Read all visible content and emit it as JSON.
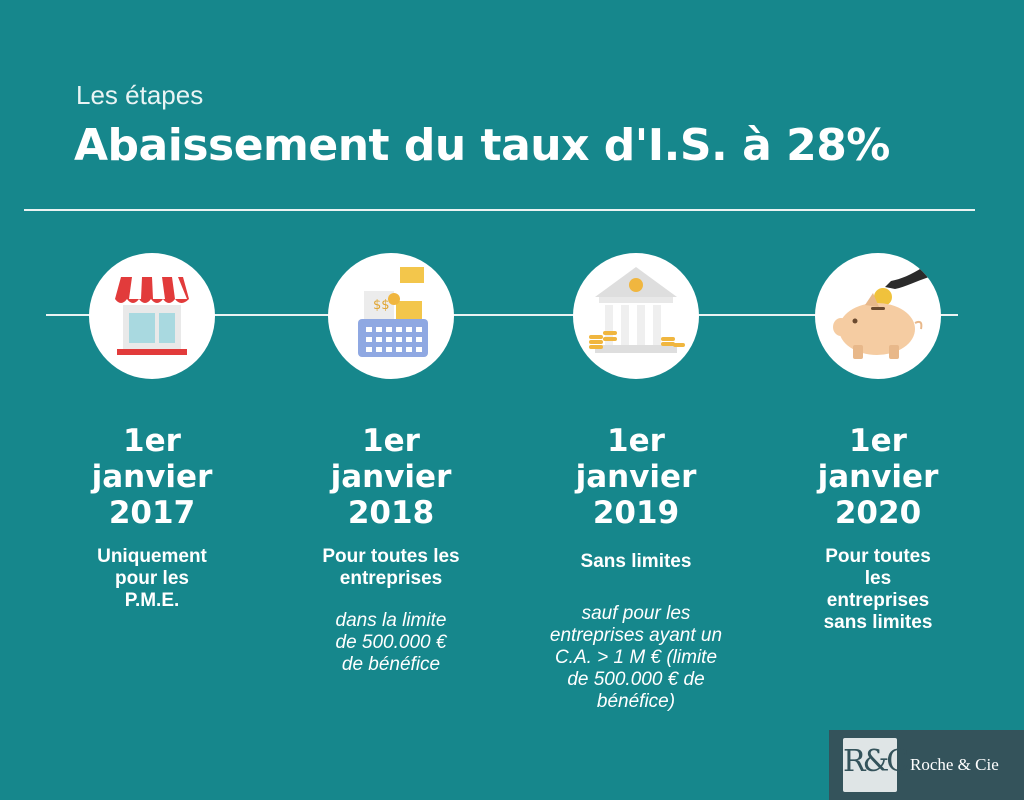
{
  "header": {
    "subtitle": "Les étapes",
    "title": "Abaissement du taux d'I.S. à 28%"
  },
  "steps": [
    {
      "icon": "storefront-icon",
      "date": "1er\njanvier\n2017",
      "description": "Uniquement\npour les\nP.M.E.",
      "note": ""
    },
    {
      "icon": "cash-register-icon",
      "date": "1er\njanvier\n2018",
      "description": "Pour toutes les\nentreprises",
      "note": "dans la limite\nde 500.000 €\nde bénéfice"
    },
    {
      "icon": "bank-icon",
      "date": "1er\njanvier\n2019",
      "description": "Sans limites",
      "note": "sauf pour les\nentreprises ayant un\nC.A. > 1 M € (limite\nde 500.000 € de\nbénéfice)"
    },
    {
      "icon": "piggy-bank-icon",
      "date": "1er\njanvier\n2020",
      "description": "Pour toutes\nles\nentreprises\nsans limites",
      "note": ""
    }
  ],
  "logo": {
    "mark": "R&C",
    "name": "Roche & Cie"
  },
  "colors": {
    "background": "#16878c",
    "text": "#ffffff",
    "logo_bg": "#34535b"
  }
}
